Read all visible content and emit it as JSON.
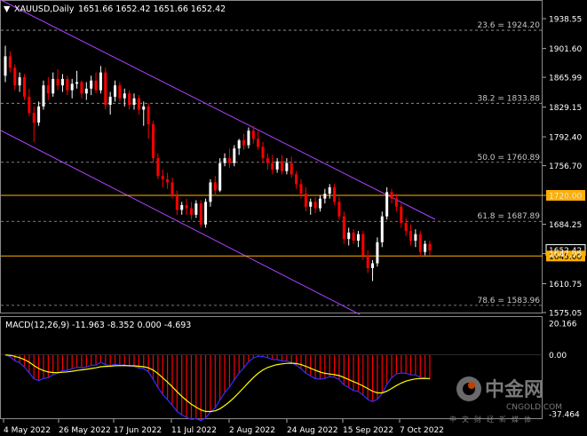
{
  "header": {
    "symbol": "XAUUSD,Daily",
    "ohlc": "1651.66 1652.42 1651.66 1652.42"
  },
  "macd_header": "MACD(12,26,9) -11.963 -8.352 0.000 -4.693",
  "colors": {
    "background": "#000000",
    "bull": "#ffffff",
    "bear": "#ff0000",
    "channel": "#b040ff",
    "level_line": "#ffb000",
    "macd_line": "#3030ff",
    "signal_line": "#ffff00"
  },
  "price_axis_ticks": [
    "1938.55",
    "1901.60",
    "1865.99",
    "1829.15",
    "1792.40",
    "1756.70",
    "1720.00",
    "1684.25",
    "1647.95",
    "1610.75",
    "1575.05"
  ],
  "level_tags": [
    {
      "label": "1720.00",
      "price": 1720.0
    },
    {
      "label": "1652.42",
      "price": 1652.42
    },
    {
      "label": "1645.00",
      "price": 1645.0
    }
  ],
  "fib_levels": [
    {
      "label": "23.6 = 1924.20",
      "price": 1924.2
    },
    {
      "label": "38.2 = 1833.88",
      "price": 1833.88
    },
    {
      "label": "50.0 = 1760.89",
      "price": 1760.89
    },
    {
      "label": "61.8 = 1687.89",
      "price": 1687.89
    },
    {
      "label": "78.6 = 1583.96",
      "price": 1583.96
    }
  ],
  "macd_axis_ticks": [
    "20.166",
    "0.00",
    "-37.464"
  ],
  "date_axis": [
    "4 May 2022",
    "26 May 2022",
    "17 Jun 2022",
    "11 Jul 2022",
    "2 Aug 2022",
    "24 Aug 2022",
    "15 Sep 2022",
    "7 Oct 2022"
  ],
  "watermark": {
    "brand": "中金网",
    "domain": "CNGOLD.COM",
    "slogan": "中文财经新媒体"
  },
  "chart_data": {
    "type": "candlestick",
    "price_range": [
      1570,
      1950
    ],
    "candles": [
      [
        1868,
        1905,
        1860,
        1892
      ],
      [
        1892,
        1898,
        1872,
        1878
      ],
      [
        1878,
        1882,
        1850,
        1856
      ],
      [
        1856,
        1872,
        1848,
        1866
      ],
      [
        1866,
        1870,
        1838,
        1842
      ],
      [
        1842,
        1852,
        1818,
        1822
      ],
      [
        1822,
        1830,
        1786,
        1810
      ],
      [
        1810,
        1836,
        1806,
        1830
      ],
      [
        1830,
        1862,
        1826,
        1856
      ],
      [
        1856,
        1866,
        1838,
        1846
      ],
      [
        1846,
        1872,
        1842,
        1864
      ],
      [
        1864,
        1876,
        1850,
        1856
      ],
      [
        1856,
        1870,
        1848,
        1864
      ],
      [
        1864,
        1868,
        1844,
        1850
      ],
      [
        1850,
        1864,
        1840,
        1858
      ],
      [
        1858,
        1874,
        1852,
        1860
      ],
      [
        1860,
        1862,
        1840,
        1846
      ],
      [
        1846,
        1860,
        1838,
        1852
      ],
      [
        1852,
        1868,
        1844,
        1862
      ],
      [
        1862,
        1872,
        1846,
        1850
      ],
      [
        1850,
        1880,
        1846,
        1872
      ],
      [
        1872,
        1878,
        1826,
        1832
      ],
      [
        1832,
        1848,
        1820,
        1842
      ],
      [
        1842,
        1862,
        1836,
        1856
      ],
      [
        1856,
        1860,
        1836,
        1840
      ],
      [
        1840,
        1852,
        1830,
        1846
      ],
      [
        1846,
        1850,
        1826,
        1832
      ],
      [
        1832,
        1846,
        1826,
        1840
      ],
      [
        1840,
        1844,
        1820,
        1826
      ],
      [
        1826,
        1836,
        1806,
        1830
      ],
      [
        1830,
        1834,
        1790,
        1808
      ],
      [
        1808,
        1812,
        1760,
        1766
      ],
      [
        1766,
        1772,
        1740,
        1744
      ],
      [
        1744,
        1752,
        1730,
        1740
      ],
      [
        1740,
        1748,
        1728,
        1736
      ],
      [
        1736,
        1742,
        1716,
        1720
      ],
      [
        1720,
        1726,
        1696,
        1702
      ],
      [
        1702,
        1712,
        1696,
        1708
      ],
      [
        1708,
        1716,
        1696,
        1704
      ],
      [
        1704,
        1712,
        1690,
        1696
      ],
      [
        1696,
        1714,
        1692,
        1710
      ],
      [
        1710,
        1714,
        1680,
        1684
      ],
      [
        1684,
        1716,
        1680,
        1712
      ],
      [
        1712,
        1740,
        1706,
        1736
      ],
      [
        1736,
        1744,
        1720,
        1726
      ],
      [
        1726,
        1766,
        1724,
        1760
      ],
      [
        1760,
        1772,
        1756,
        1766
      ],
      [
        1766,
        1778,
        1754,
        1760
      ],
      [
        1760,
        1782,
        1756,
        1778
      ],
      [
        1778,
        1790,
        1770,
        1788
      ],
      [
        1788,
        1796,
        1776,
        1782
      ],
      [
        1782,
        1804,
        1778,
        1800
      ],
      [
        1800,
        1806,
        1784,
        1790
      ],
      [
        1790,
        1800,
        1776,
        1780
      ],
      [
        1780,
        1786,
        1760,
        1766
      ],
      [
        1766,
        1772,
        1752,
        1760
      ],
      [
        1760,
        1770,
        1746,
        1752
      ],
      [
        1752,
        1766,
        1748,
        1762
      ],
      [
        1762,
        1770,
        1746,
        1750
      ],
      [
        1750,
        1766,
        1746,
        1760
      ],
      [
        1760,
        1768,
        1742,
        1746
      ],
      [
        1746,
        1750,
        1728,
        1734
      ],
      [
        1734,
        1740,
        1716,
        1722
      ],
      [
        1722,
        1730,
        1700,
        1706
      ],
      [
        1706,
        1716,
        1696,
        1712
      ],
      [
        1712,
        1718,
        1698,
        1704
      ],
      [
        1704,
        1720,
        1700,
        1716
      ],
      [
        1716,
        1728,
        1710,
        1722
      ],
      [
        1722,
        1734,
        1716,
        1730
      ],
      [
        1730,
        1734,
        1708,
        1712
      ],
      [
        1712,
        1718,
        1690,
        1694
      ],
      [
        1694,
        1700,
        1660,
        1666
      ],
      [
        1666,
        1680,
        1658,
        1674
      ],
      [
        1674,
        1678,
        1660,
        1664
      ],
      [
        1664,
        1676,
        1656,
        1672
      ],
      [
        1672,
        1676,
        1640,
        1646
      ],
      [
        1646,
        1652,
        1624,
        1630
      ],
      [
        1630,
        1640,
        1614,
        1636
      ],
      [
        1636,
        1668,
        1632,
        1662
      ],
      [
        1662,
        1700,
        1656,
        1694
      ],
      [
        1694,
        1730,
        1690,
        1724
      ],
      [
        1724,
        1728,
        1710,
        1716
      ],
      [
        1716,
        1722,
        1700,
        1706
      ],
      [
        1706,
        1710,
        1680,
        1686
      ],
      [
        1686,
        1692,
        1670,
        1676
      ],
      [
        1676,
        1684,
        1658,
        1664
      ],
      [
        1664,
        1678,
        1656,
        1672
      ],
      [
        1672,
        1676,
        1644,
        1650
      ],
      [
        1650,
        1664,
        1646,
        1660
      ],
      [
        1660,
        1664,
        1646,
        1652
      ]
    ],
    "macd_range": [
      -37.464,
      20.166
    ]
  }
}
